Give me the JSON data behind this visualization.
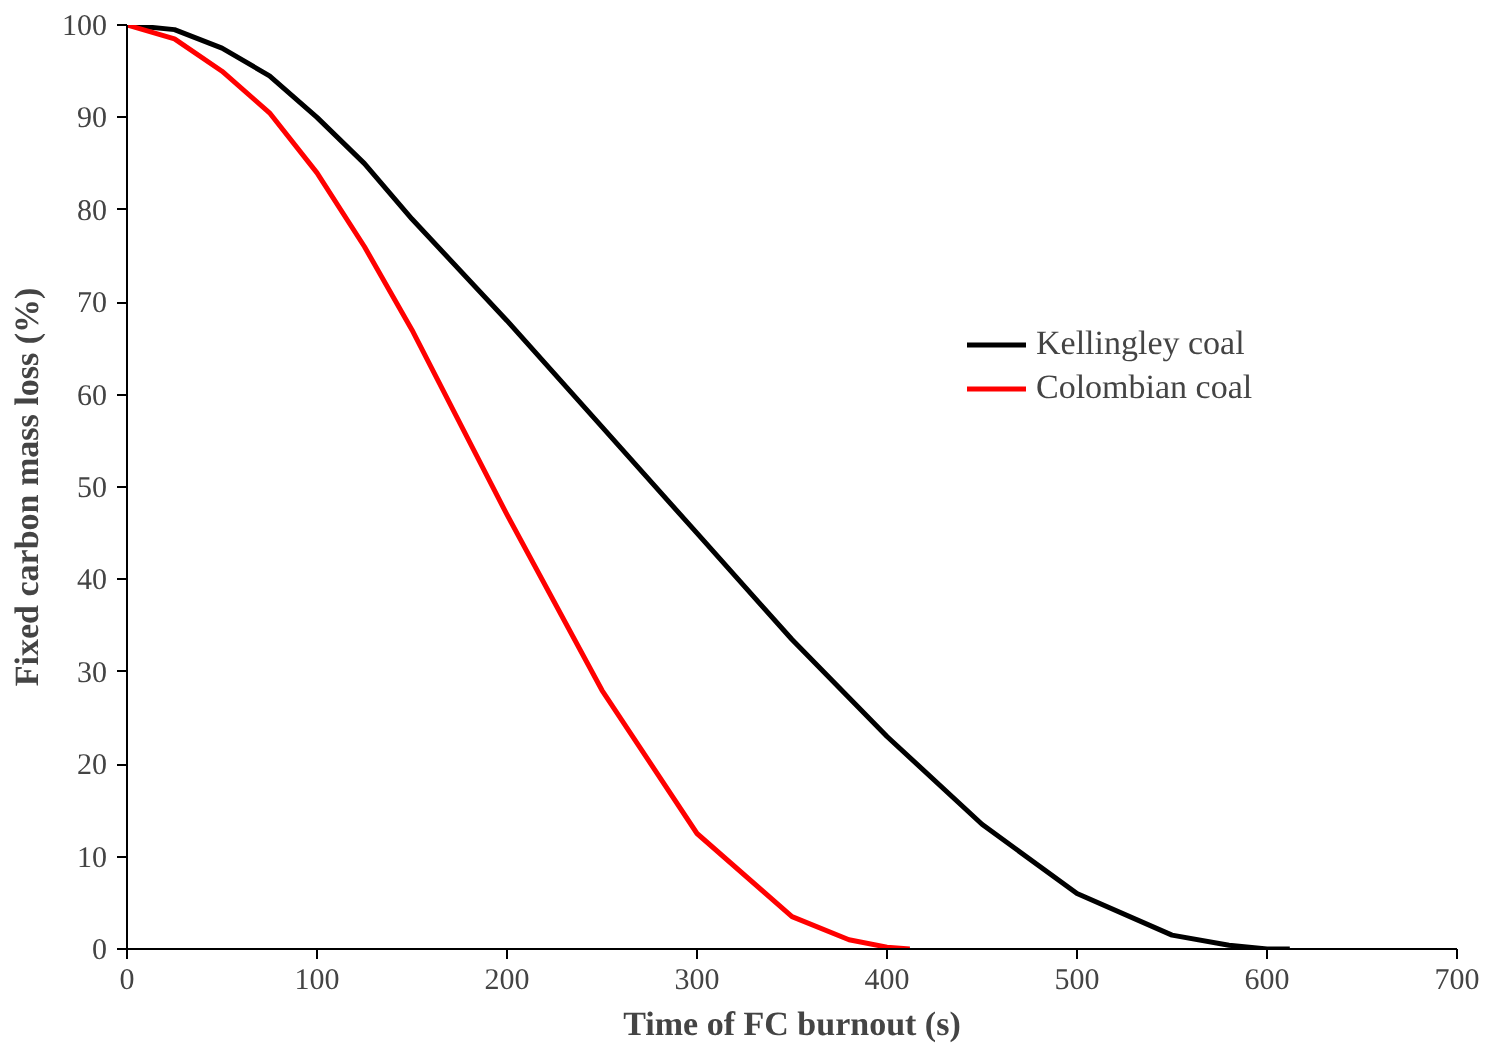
{
  "chart_data": {
    "type": "line",
    "xlabel": "Time of FC burnout (s)",
    "ylabel": "Fixed carbon mass loss (%)",
    "xlim": [
      0,
      700
    ],
    "xticks": [
      0,
      100,
      200,
      300,
      400,
      500,
      600,
      700
    ],
    "ylim": [
      0,
      100
    ],
    "yticks": [
      0,
      10,
      20,
      30,
      40,
      50,
      60,
      70,
      80,
      90,
      100
    ],
    "grid": false,
    "legend": "right",
    "marker": "none",
    "line_style": "solid",
    "series": [
      {
        "name": "Kellingley coal",
        "color": "#000000",
        "x": [
          0,
          25,
          50,
          75,
          100,
          125,
          150,
          200,
          250,
          300,
          350,
          400,
          450,
          500,
          550,
          580,
          600,
          612
        ],
        "values": [
          100,
          99.5,
          97.5,
          94.5,
          90,
          85,
          79,
          68,
          56.5,
          45,
          33.5,
          23,
          13.5,
          6,
          1.5,
          0.4,
          0,
          0
        ]
      },
      {
        "name": "Colombian coal",
        "color": "#ff0000",
        "x": [
          0,
          25,
          50,
          75,
          100,
          125,
          150,
          175,
          200,
          250,
          300,
          350,
          380,
          400,
          412
        ],
        "values": [
          100,
          98.5,
          95,
          90.5,
          84,
          76,
          67,
          57,
          47,
          28,
          12.5,
          3.5,
          1,
          0.2,
          0
        ]
      }
    ]
  }
}
